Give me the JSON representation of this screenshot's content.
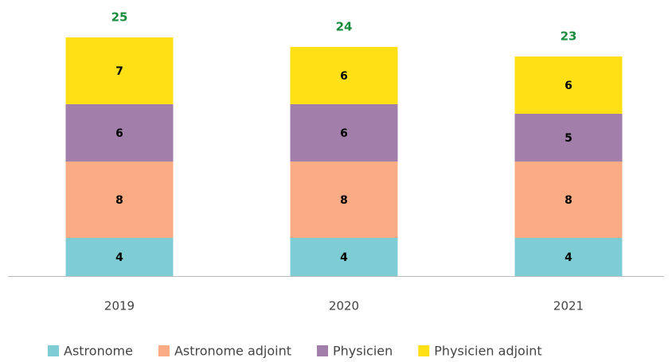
{
  "chart_data": {
    "type": "stacked_bar",
    "categories": [
      "2019",
      "2020",
      "2021"
    ],
    "series": [
      {
        "name": "Astronome",
        "color": "#7fcdd4",
        "values": [
          4,
          4,
          4
        ]
      },
      {
        "name": "Astronome adjoint",
        "color": "#f9ac84",
        "values": [
          8,
          8,
          8
        ]
      },
      {
        "name": "Physicien",
        "color": "#a17faa",
        "values": [
          6,
          6,
          5
        ]
      },
      {
        "name": "Physicien adjoint",
        "color": "#ffe014",
        "values": [
          7,
          6,
          6
        ]
      }
    ],
    "totals": [
      25,
      24,
      23
    ],
    "ylim": [
      0,
      25
    ],
    "legend": "bottom"
  }
}
